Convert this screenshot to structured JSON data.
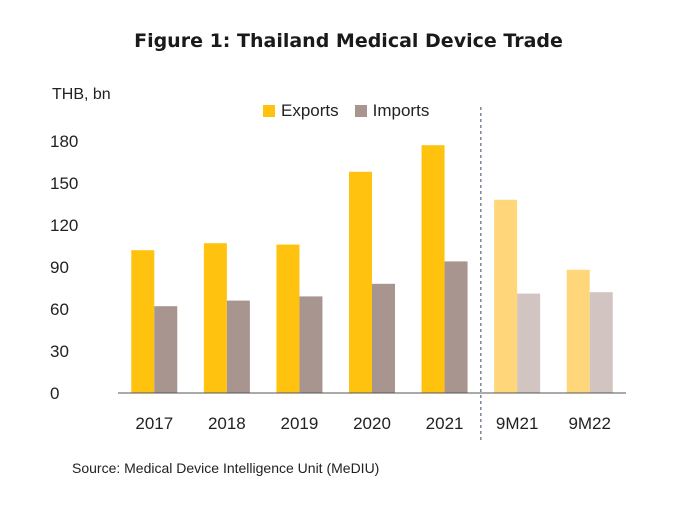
{
  "title": "Figure 1: Thailand Medical Device Trade",
  "source": "Source: Medical Device Intelligence Unit (MeDIU)",
  "colors": {
    "exports": "#FFC20E",
    "imports": "#A89590",
    "exports_partial": "#FFD77A",
    "imports_partial": "#D2C4C0"
  },
  "chart_data": {
    "type": "bar",
    "ylabel": "THB, bn",
    "ylim": [
      0,
      180
    ],
    "yticks": [
      0,
      30,
      60,
      90,
      120,
      150,
      180
    ],
    "categories": [
      "2017",
      "2018",
      "2019",
      "2020",
      "2021",
      "9M21",
      "9M22"
    ],
    "partial_categories": [
      "9M21",
      "9M22"
    ],
    "legend_position": "top",
    "grid": false,
    "series": [
      {
        "name": "Exports",
        "values": [
          102,
          107,
          106,
          158,
          177,
          138,
          88
        ]
      },
      {
        "name": "Imports",
        "values": [
          62,
          66,
          69,
          78,
          94,
          71,
          72
        ]
      }
    ]
  }
}
